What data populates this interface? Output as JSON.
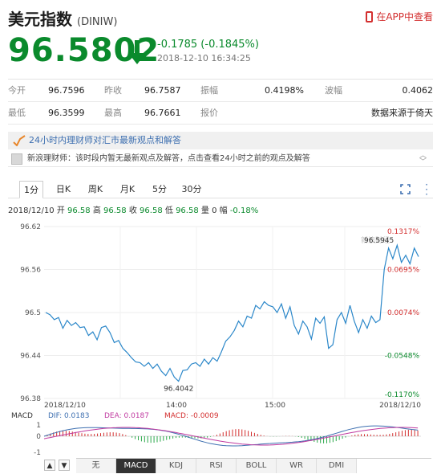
{
  "header": {
    "name": "美元指数",
    "code": "(DINIW)",
    "app_link": "在APP中查看"
  },
  "quote_main": {
    "price": "96.5802",
    "change": "-0.1785 (-0.1845%)",
    "timestamp": "2018-12-10 16:34:25",
    "color": "#0a8a2c"
  },
  "stats": {
    "row1": [
      {
        "label": "今开",
        "value": "96.7596"
      },
      {
        "label": "昨收",
        "value": "96.7587"
      },
      {
        "label": "振幅",
        "value": "0.4198%"
      },
      {
        "label": "波幅",
        "value": "0.4062"
      }
    ],
    "row2": [
      {
        "label": "最低",
        "value": "96.3599"
      },
      {
        "label": "最高",
        "value": "96.7661"
      },
      {
        "label": "报价",
        "value": ""
      },
      {
        "label": "",
        "value": "数据来源于倚天"
      }
    ]
  },
  "banner": {
    "text": "24小时内理财师对汇市最新观点和解答"
  },
  "tip": {
    "text": "新浪理财师：该时段内暂无最新观点及解答，点击查看24小时之前的观点及解答"
  },
  "tabs": [
    "1分",
    "日K",
    "周K",
    "月K",
    "5分",
    "30分"
  ],
  "active_tab": "1分",
  "quote_line": {
    "date": "2018/12/10",
    "open_label": "开",
    "open": "96.58",
    "high_label": "高",
    "high": "96.58",
    "close_label": "收",
    "close": "96.58",
    "low_label": "低",
    "low": "96.58",
    "vol_label": "量",
    "vol": "0",
    "rate_label": "幅",
    "rate": "-0.18%"
  },
  "chart_data": {
    "type": "line",
    "yticks": [
      "96.62",
      "96.56",
      "96.5",
      "96.44",
      "96.38"
    ],
    "ylim": [
      96.38,
      96.62
    ],
    "pct_labels": [
      "0.1317%",
      "0.0695%",
      "0.0074%",
      "-0.0548%",
      "-0.1170%"
    ],
    "xticks": [
      "2018/12/10",
      "14:00",
      "15:00",
      "2018/12/10"
    ],
    "annotations": {
      "high": "96.5945",
      "low": "96.4042"
    },
    "watermark": "新浪财经",
    "series": [
      {
        "values": [
          96.5,
          96.497,
          96.49,
          96.493,
          96.478,
          96.489,
          96.482,
          96.486,
          96.479,
          96.48,
          96.468,
          96.473,
          96.462,
          96.479,
          96.481,
          96.472,
          96.458,
          96.461,
          96.45,
          96.444,
          96.437,
          96.431,
          96.43,
          96.425,
          96.43,
          96.422,
          96.428,
          96.418,
          96.412,
          96.422,
          96.41,
          96.404,
          96.419,
          96.42,
          96.428,
          96.43,
          96.425,
          96.435,
          96.428,
          96.437,
          96.432,
          96.445,
          96.46,
          96.466,
          96.475,
          96.488,
          96.48,
          96.495,
          96.492,
          96.51,
          96.505,
          96.515,
          96.51,
          96.508,
          96.5,
          96.512,
          96.492,
          96.508,
          96.482,
          96.47,
          96.488,
          96.48,
          96.463,
          96.492,
          96.485,
          96.494,
          96.45,
          96.455,
          96.49,
          96.5,
          96.485,
          96.51,
          96.488,
          96.472,
          96.49,
          96.478,
          96.495,
          96.486,
          96.49,
          96.56,
          96.59,
          96.575,
          96.594,
          96.57,
          96.58,
          96.568,
          96.59,
          96.578
        ]
      }
    ]
  },
  "macd": {
    "label": "MACD",
    "dif": "DIF: 0.0183",
    "dea": "DEA: 0.0187",
    "macd": "MACD: -0.0009",
    "ticks": [
      "1",
      "0",
      "-1"
    ]
  },
  "indicators": [
    "无",
    "MACD",
    "KDJ",
    "RSI",
    "BOLL",
    "WR",
    "DMI"
  ],
  "active_indicator": "MACD",
  "nav": {
    "up": "▲",
    "down": "▼"
  }
}
